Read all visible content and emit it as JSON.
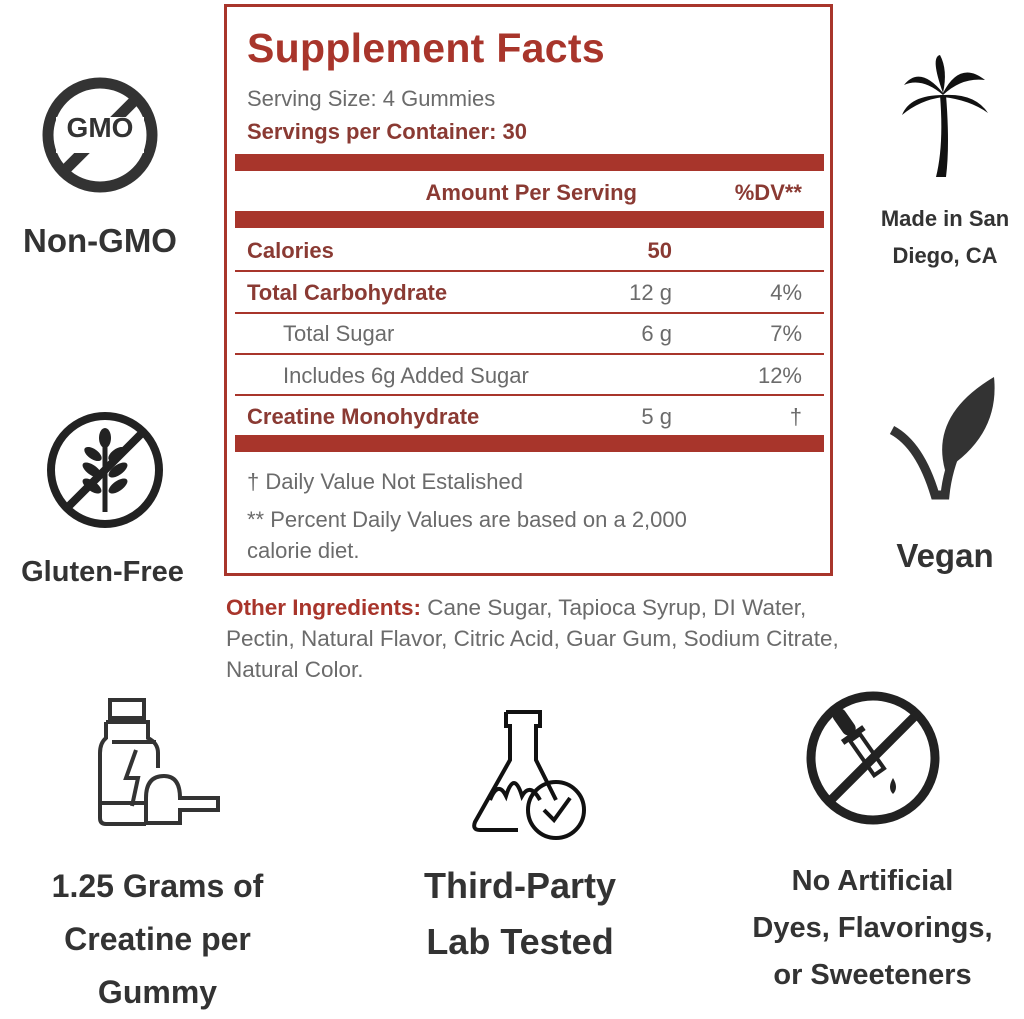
{
  "label": {
    "title": "Supplement Facts",
    "serving_size": "Serving Size: 4 Gummies",
    "servings_per_container": "Servings per Container: 30",
    "header_amount": "Amount Per Serving",
    "header_dv": "%DV**",
    "rows": [
      {
        "name": "Calories",
        "amount": "50",
        "dv": "",
        "bold": true
      },
      {
        "name": "Total Carbohydrate",
        "amount": "12 g",
        "dv": "4%",
        "bold": true
      },
      {
        "name": "Total Sugar",
        "amount": "6 g",
        "dv": "7%",
        "bold": false
      },
      {
        "name": "Includes 6g Added Sugar",
        "amount": "",
        "dv": "12%",
        "bold": false
      },
      {
        "name": "Creatine Monohydrate",
        "amount": "5 g",
        "dv": "†",
        "bold": true
      }
    ],
    "note_1": "† Daily Value Not Estalished",
    "note_2": "** Percent Daily Values are based on a 2,000 calorie diet."
  },
  "ingredients": {
    "label": "Other Ingredients:",
    "text": " Cane Sugar, Tapioca Syrup, DI Water, Pectin, Natural Flavor, Citric Acid, Guar Gum, Sodium Citrate, Natural Color."
  },
  "features": {
    "non_gmo": {
      "icon": "no-gmo-icon",
      "icon_text": "GMO",
      "label": "Non-GMO"
    },
    "gluten_free": {
      "icon": "no-gluten-icon",
      "label": "Gluten-Free"
    },
    "san_diego": {
      "icon": "palm-tree-icon",
      "line1": "Made in San",
      "line2": "Diego, CA"
    },
    "vegan": {
      "icon": "vegan-leaf-icon",
      "label": "Vegan"
    },
    "creatine": {
      "icon": "supplement-jar-scoop-icon",
      "line1": "1.25 Grams of",
      "line2": "Creatine per",
      "line3": "Gummy"
    },
    "lab_tested": {
      "icon": "flask-check-icon",
      "line1": "Third-Party",
      "line2": "Lab Tested"
    },
    "no_artificial": {
      "icon": "no-dropper-icon",
      "line1": "No Artificial",
      "line2": "Dyes, Flavorings,",
      "line3": "or Sweeteners"
    }
  },
  "colors": {
    "accent": "#a8352b",
    "text": "#333333",
    "label_text": "#6b6b6b"
  }
}
